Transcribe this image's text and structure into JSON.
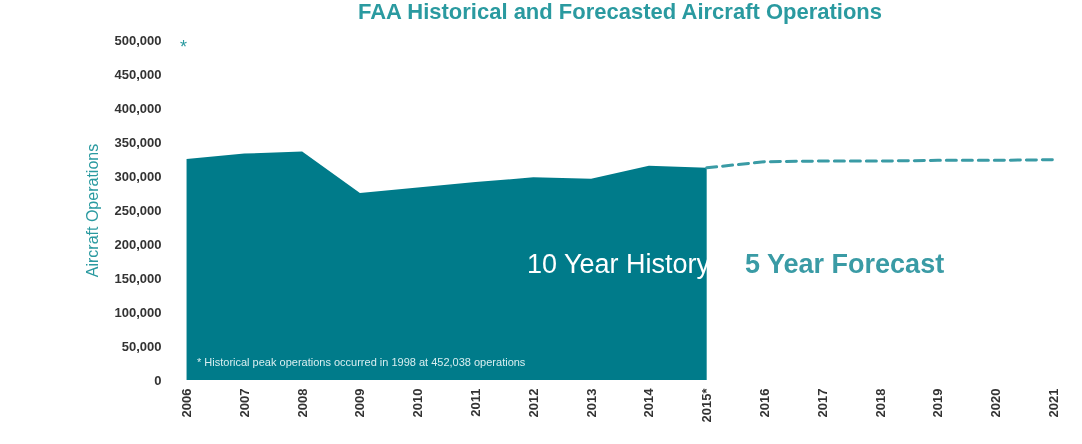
{
  "chart_data": {
    "type": "area",
    "title": "FAA Historical and Forecasted Aircraft Operations",
    "ylabel": "Aircraft Operations",
    "categories": [
      "2006",
      "2007",
      "2008",
      "2009",
      "2010",
      "2011",
      "2012",
      "2013",
      "2014",
      "2015*",
      "2016",
      "2017",
      "2018",
      "2019",
      "2020",
      "2021"
    ],
    "series": [
      {
        "name": "10 Year History",
        "color": "#007b8a",
        "values": [
          325000,
          333000,
          336000,
          275000,
          283000,
          291000,
          298000,
          296000,
          315000,
          312000,
          null,
          null,
          null,
          null,
          null,
          null
        ]
      },
      {
        "name": "5 Year Forecast",
        "type": "line",
        "line_style": "dashed",
        "color": "#3a9ba5",
        "values": [
          null,
          null,
          null,
          null,
          null,
          null,
          null,
          null,
          null,
          312000,
          321000,
          322000,
          322000,
          323000,
          323000,
          324000
        ]
      }
    ],
    "ylim": [
      0,
      500000
    ],
    "yticks": [
      0,
      {
        "value": 50000,
        "label": "50,000"
      },
      {
        "value": 100000,
        "label": "100,000"
      },
      {
        "value": 150000,
        "label": "150,000"
      },
      {
        "value": 200000,
        "label": "200,000"
      },
      {
        "value": 250000,
        "label": "250,000"
      },
      {
        "value": 300000,
        "label": "300,000"
      },
      {
        "value": 350000,
        "label": "350,000"
      },
      {
        "value": 400000,
        "label": "400,000"
      },
      {
        "value": 450000,
        "label": "450,000"
      },
      {
        "value": 500000,
        "label": "500,000"
      }
    ],
    "annotations": [
      "*",
      "* Historical peak operations occurred in 1998 at 452,038 operations"
    ]
  }
}
